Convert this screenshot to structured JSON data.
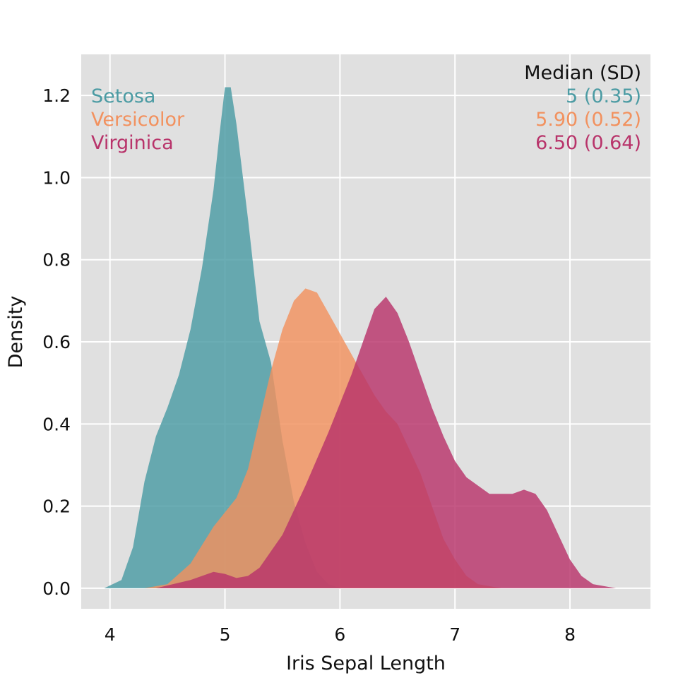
{
  "chart_data": {
    "type": "area",
    "xlabel": "Iris Sepal Length",
    "ylabel": "Density",
    "xlim": [
      3.75,
      8.7
    ],
    "ylim": [
      -0.05,
      1.3
    ],
    "xticks": [
      4,
      5,
      6,
      7,
      8
    ],
    "xtick_labels": [
      "4",
      "5",
      "6",
      "7",
      "8"
    ],
    "yticks": [
      0,
      0.2,
      0.4,
      0.6,
      0.8,
      1.0,
      1.2
    ],
    "ytick_labels": [
      "0.0",
      "0.2",
      "0.4",
      "0.6",
      "0.8",
      "1.0",
      "1.2"
    ],
    "grid": true,
    "background": "#E0E0E0",
    "legend_header": "Median (SD)",
    "series": [
      {
        "name": "Setosa",
        "summary": "5 (0.35)",
        "color": "#4B9BA3",
        "points": [
          [
            3.95,
            0.0
          ],
          [
            4.1,
            0.02
          ],
          [
            4.2,
            0.1
          ],
          [
            4.3,
            0.26
          ],
          [
            4.4,
            0.37
          ],
          [
            4.5,
            0.44
          ],
          [
            4.6,
            0.52
          ],
          [
            4.7,
            0.63
          ],
          [
            4.8,
            0.78
          ],
          [
            4.9,
            0.97
          ],
          [
            4.95,
            1.1
          ],
          [
            5.0,
            1.22
          ],
          [
            5.05,
            1.22
          ],
          [
            5.1,
            1.13
          ],
          [
            5.2,
            0.9
          ],
          [
            5.3,
            0.65
          ],
          [
            5.4,
            0.55
          ],
          [
            5.5,
            0.36
          ],
          [
            5.6,
            0.21
          ],
          [
            5.7,
            0.11
          ],
          [
            5.8,
            0.04
          ],
          [
            5.9,
            0.01
          ],
          [
            6.0,
            0.0
          ]
        ]
      },
      {
        "name": "Versicolor",
        "summary": "5.90 (0.52)",
        "color": "#F2915E",
        "points": [
          [
            4.3,
            0.0
          ],
          [
            4.5,
            0.01
          ],
          [
            4.7,
            0.06
          ],
          [
            4.9,
            0.15
          ],
          [
            5.1,
            0.22
          ],
          [
            5.2,
            0.29
          ],
          [
            5.3,
            0.41
          ],
          [
            5.4,
            0.53
          ],
          [
            5.5,
            0.63
          ],
          [
            5.6,
            0.7
          ],
          [
            5.7,
            0.73
          ],
          [
            5.8,
            0.72
          ],
          [
            5.9,
            0.67
          ],
          [
            6.0,
            0.62
          ],
          [
            6.1,
            0.57
          ],
          [
            6.2,
            0.52
          ],
          [
            6.3,
            0.47
          ],
          [
            6.4,
            0.43
          ],
          [
            6.5,
            0.4
          ],
          [
            6.6,
            0.34
          ],
          [
            6.7,
            0.28
          ],
          [
            6.8,
            0.2
          ],
          [
            6.9,
            0.12
          ],
          [
            7.0,
            0.07
          ],
          [
            7.1,
            0.03
          ],
          [
            7.2,
            0.01
          ],
          [
            7.4,
            0.0
          ]
        ]
      },
      {
        "name": "Virginica",
        "summary": "6.50 (0.64)",
        "color": "#B8336A",
        "points": [
          [
            4.4,
            0.0
          ],
          [
            4.7,
            0.02
          ],
          [
            4.9,
            0.04
          ],
          [
            5.0,
            0.035
          ],
          [
            5.1,
            0.025
          ],
          [
            5.2,
            0.03
          ],
          [
            5.3,
            0.05
          ],
          [
            5.5,
            0.13
          ],
          [
            5.7,
            0.25
          ],
          [
            5.9,
            0.38
          ],
          [
            6.1,
            0.52
          ],
          [
            6.2,
            0.6
          ],
          [
            6.3,
            0.68
          ],
          [
            6.4,
            0.71
          ],
          [
            6.5,
            0.67
          ],
          [
            6.6,
            0.6
          ],
          [
            6.7,
            0.52
          ],
          [
            6.8,
            0.44
          ],
          [
            6.9,
            0.37
          ],
          [
            7.0,
            0.31
          ],
          [
            7.1,
            0.27
          ],
          [
            7.2,
            0.25
          ],
          [
            7.3,
            0.23
          ],
          [
            7.4,
            0.23
          ],
          [
            7.5,
            0.23
          ],
          [
            7.6,
            0.24
          ],
          [
            7.7,
            0.23
          ],
          [
            7.8,
            0.19
          ],
          [
            7.9,
            0.13
          ],
          [
            8.0,
            0.07
          ],
          [
            8.1,
            0.03
          ],
          [
            8.2,
            0.01
          ],
          [
            8.4,
            0.0
          ],
          [
            8.5,
            0.0
          ]
        ]
      }
    ]
  }
}
